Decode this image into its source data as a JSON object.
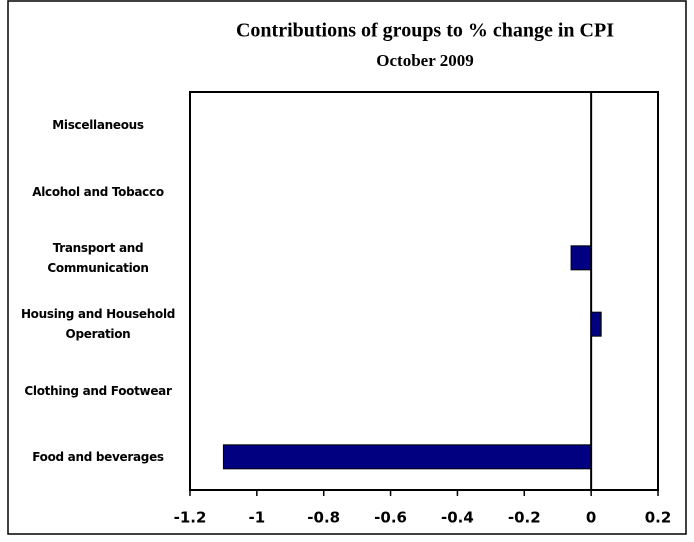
{
  "chart_data": {
    "type": "barh",
    "title": "Contributions of groups to % change in CPI",
    "subtitle": "October 2009",
    "categories": [
      "Miscellaneous",
      "Alcohol and Tobacco",
      "Transport and Communication",
      "Housing and Household Operation",
      "Clothing and Footwear",
      "Food and beverages"
    ],
    "values": [
      0,
      0,
      -0.06,
      0.03,
      0,
      -1.1
    ],
    "color": "#000080",
    "xlim": [
      -1.2,
      0.2
    ],
    "xticks": [
      -1.2,
      -1,
      -0.8,
      -0.6,
      -0.4,
      -0.2,
      0,
      0.2
    ]
  }
}
